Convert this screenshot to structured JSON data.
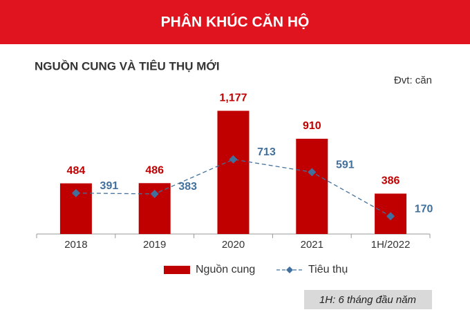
{
  "header": {
    "title": "PHÂN KHÚC CĂN HỘ"
  },
  "chart_data": {
    "type": "bar",
    "title": "NGUỒN CUNG VÀ TIÊU THỤ MỚI",
    "unit_note": "Đvt: căn",
    "categories": [
      "2018",
      "2019",
      "2020",
      "2021",
      "1H/2022"
    ],
    "series": [
      {
        "name": "Nguồn cung",
        "type": "bar",
        "color": "#c00000",
        "values": [
          484,
          486,
          1177,
          910,
          386
        ],
        "value_labels": [
          "484",
          "486",
          "1,177",
          "910",
          "386"
        ]
      },
      {
        "name": "Tiêu thụ",
        "type": "line",
        "color": "#41709c",
        "values": [
          391,
          383,
          713,
          591,
          170
        ]
      }
    ],
    "ylim": [
      0,
      1200
    ],
    "grid": false
  },
  "footnote": "1H: 6 tháng đầu năm"
}
